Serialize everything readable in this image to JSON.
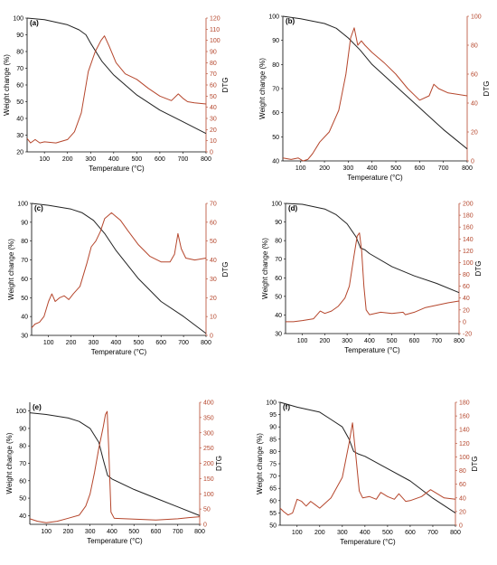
{
  "colors": {
    "weight": "#222222",
    "dtg": "#b5462c",
    "axis": "#000000",
    "grid": "#d9d9d9"
  },
  "chart_data": [
    {
      "panel": "(a)",
      "type": "line",
      "xlabel": "Temperature (°C)",
      "ylabel": "Weight change (%)",
      "y2label": "DTG",
      "xlim": [
        25,
        800
      ],
      "ylim": [
        20,
        100
      ],
      "y2lim": [
        0,
        120
      ],
      "xticks": [
        100,
        200,
        300,
        400,
        500,
        600,
        700,
        800
      ],
      "yticks": [
        20,
        30,
        40,
        50,
        60,
        70,
        80,
        90,
        100
      ],
      "y2ticks": [
        0,
        10,
        20,
        30,
        40,
        50,
        60,
        70,
        80,
        90,
        100,
        110,
        120
      ],
      "series": [
        {
          "axis": "left",
          "x": [
            25,
            100,
            200,
            250,
            280,
            300,
            350,
            400,
            500,
            600,
            700,
            800
          ],
          "y": [
            100,
            99,
            96,
            93,
            90,
            85,
            74,
            66,
            54,
            45,
            38,
            31
          ]
        },
        {
          "axis": "right",
          "x": [
            25,
            40,
            60,
            80,
            100,
            150,
            200,
            230,
            260,
            290,
            320,
            345,
            360,
            380,
            410,
            450,
            500,
            550,
            600,
            650,
            680,
            700,
            720,
            750,
            800
          ],
          "y": [
            12,
            8,
            11,
            8,
            9,
            8,
            11,
            18,
            35,
            72,
            90,
            100,
            104,
            95,
            80,
            70,
            65,
            57,
            50,
            46,
            52,
            48,
            45,
            44,
            43
          ]
        }
      ]
    },
    {
      "panel": "(b)",
      "type": "line",
      "xlabel": "Temperature (°C)",
      "ylabel": "Weight change (%)",
      "y2label": "DTG",
      "xlim": [
        25,
        800
      ],
      "ylim": [
        40,
        100
      ],
      "y2lim": [
        0,
        100
      ],
      "xticks": [
        100,
        200,
        300,
        400,
        500,
        600,
        700,
        800
      ],
      "yticks": [
        40,
        50,
        60,
        70,
        80,
        90,
        100
      ],
      "y2ticks": [
        0,
        20,
        40,
        60,
        80,
        100
      ],
      "series": [
        {
          "axis": "left",
          "x": [
            25,
            100,
            200,
            250,
            300,
            350,
            400,
            500,
            600,
            700,
            800
          ],
          "y": [
            100,
            99,
            97,
            95,
            91,
            86,
            80,
            71,
            62,
            53,
            45
          ]
        },
        {
          "axis": "right",
          "x": [
            25,
            60,
            90,
            110,
            130,
            150,
            180,
            220,
            260,
            290,
            310,
            325,
            340,
            355,
            370,
            400,
            450,
            500,
            550,
            600,
            640,
            660,
            680,
            720,
            800
          ],
          "y": [
            2,
            1,
            2,
            0,
            1,
            5,
            13,
            20,
            35,
            60,
            85,
            92,
            80,
            83,
            80,
            75,
            68,
            60,
            50,
            42,
            45,
            53,
            50,
            47,
            45
          ]
        }
      ]
    },
    {
      "panel": "(c)",
      "type": "line",
      "xlabel": "Temperature (°C)",
      "ylabel": "Weight change (%)",
      "y2label": "DTG",
      "xlim": [
        25,
        800
      ],
      "ylim": [
        30,
        100
      ],
      "y2lim": [
        0,
        70
      ],
      "xticks": [
        100,
        200,
        300,
        400,
        500,
        600,
        700,
        800
      ],
      "yticks": [
        30,
        40,
        50,
        60,
        70,
        80,
        90,
        100
      ],
      "y2ticks": [
        0,
        10,
        20,
        30,
        40,
        50,
        60,
        70
      ],
      "series": [
        {
          "axis": "left",
          "x": [
            25,
            100,
            200,
            250,
            300,
            350,
            400,
            500,
            600,
            700,
            800
          ],
          "y": [
            100,
            99,
            97,
            95,
            91,
            84,
            75,
            60,
            48,
            40,
            31
          ]
        },
        {
          "axis": "right",
          "x": [
            25,
            40,
            60,
            80,
            100,
            115,
            130,
            150,
            170,
            190,
            210,
            240,
            270,
            290,
            310,
            330,
            350,
            380,
            420,
            450,
            500,
            550,
            600,
            640,
            660,
            675,
            690,
            710,
            750,
            800
          ],
          "y": [
            4,
            6,
            7,
            10,
            18,
            22,
            18,
            20,
            21,
            19,
            22,
            26,
            38,
            47,
            50,
            55,
            62,
            65,
            61,
            56,
            48,
            42,
            39,
            39,
            43,
            54,
            46,
            41,
            40,
            41
          ]
        }
      ]
    },
    {
      "panel": "(d)",
      "type": "line",
      "xlabel": "Temperature (°C)",
      "ylabel": "Weight change (%)",
      "y2label": "DTG",
      "xlim": [
        25,
        800
      ],
      "ylim": [
        30,
        100
      ],
      "y2lim": [
        -20,
        200
      ],
      "xticks": [
        100,
        200,
        300,
        400,
        500,
        600,
        700,
        800
      ],
      "yticks": [
        30,
        40,
        50,
        60,
        70,
        80,
        90,
        100
      ],
      "y2ticks": [
        -20,
        0,
        20,
        40,
        60,
        80,
        100,
        120,
        140,
        160,
        180,
        200
      ],
      "series": [
        {
          "axis": "left",
          "x": [
            25,
            100,
            200,
            250,
            300,
            340,
            360,
            380,
            400,
            500,
            600,
            700,
            800
          ],
          "y": [
            100,
            99.5,
            97,
            94,
            89,
            82,
            76,
            75,
            73,
            66,
            61,
            57,
            52
          ]
        },
        {
          "axis": "right",
          "x": [
            25,
            60,
            100,
            150,
            180,
            200,
            230,
            260,
            290,
            310,
            330,
            345,
            355,
            365,
            375,
            385,
            400,
            450,
            500,
            550,
            560,
            600,
            650,
            700,
            750,
            800
          ],
          "y": [
            0,
            0,
            2,
            5,
            18,
            14,
            18,
            26,
            40,
            60,
            110,
            145,
            150,
            120,
            60,
            20,
            12,
            16,
            14,
            16,
            12,
            16,
            24,
            28,
            32,
            35
          ]
        }
      ]
    },
    {
      "panel": "(e)",
      "type": "line",
      "xlabel": "Temperature (°C)",
      "ylabel": "Weight change (%)",
      "y2label": "DTG",
      "xlim": [
        25,
        800
      ],
      "ylim": [
        35,
        105
      ],
      "y2lim": [
        0,
        400
      ],
      "xticks": [
        100,
        200,
        300,
        400,
        500,
        600,
        700,
        800
      ],
      "yticks": [
        40,
        50,
        60,
        70,
        80,
        90,
        100
      ],
      "y2ticks": [
        0,
        50,
        100,
        150,
        200,
        250,
        300,
        350,
        400
      ],
      "series": [
        {
          "axis": "left",
          "x": [
            25,
            100,
            200,
            250,
            300,
            340,
            360,
            380,
            400,
            500,
            600,
            700,
            800
          ],
          "y": [
            99,
            98,
            96,
            94,
            90,
            82,
            72,
            63,
            61,
            55,
            50,
            45,
            40
          ]
        },
        {
          "axis": "right",
          "x": [
            25,
            60,
            100,
            150,
            200,
            250,
            280,
            300,
            320,
            340,
            360,
            370,
            378,
            385,
            395,
            410,
            500,
            600,
            700,
            750,
            800
          ],
          "y": [
            18,
            10,
            5,
            10,
            20,
            30,
            60,
            100,
            170,
            250,
            320,
            360,
            370,
            250,
            40,
            20,
            17,
            14,
            18,
            22,
            25
          ]
        }
      ]
    },
    {
      "panel": "(f)",
      "type": "line",
      "xlabel": "Temperature (°C)",
      "ylabel": "Weight change (%)",
      "y2label": "DTG",
      "xlim": [
        25,
        800
      ],
      "ylim": [
        50,
        100
      ],
      "y2lim": [
        0,
        180
      ],
      "xticks": [
        100,
        200,
        300,
        400,
        500,
        600,
        700,
        800
      ],
      "yticks": [
        50,
        55,
        60,
        65,
        70,
        75,
        80,
        85,
        90,
        95,
        100
      ],
      "y2ticks": [
        0,
        20,
        40,
        60,
        80,
        100,
        120,
        140,
        160,
        180
      ],
      "series": [
        {
          "axis": "left",
          "x": [
            25,
            100,
            200,
            250,
            300,
            330,
            350,
            370,
            400,
            500,
            600,
            700,
            800
          ],
          "y": [
            100,
            98,
            96,
            93,
            90,
            85,
            80,
            79,
            78,
            73,
            68,
            61,
            55
          ]
        },
        {
          "axis": "right",
          "x": [
            25,
            40,
            60,
            80,
            100,
            120,
            140,
            160,
            180,
            200,
            250,
            300,
            330,
            345,
            360,
            375,
            390,
            420,
            450,
            470,
            500,
            530,
            550,
            580,
            600,
            650,
            690,
            710,
            750,
            800
          ],
          "y": [
            25,
            20,
            15,
            18,
            38,
            35,
            28,
            35,
            30,
            25,
            40,
            70,
            120,
            150,
            100,
            50,
            40,
            42,
            38,
            48,
            42,
            38,
            46,
            35,
            36,
            42,
            52,
            48,
            40,
            38
          ]
        }
      ]
    }
  ]
}
